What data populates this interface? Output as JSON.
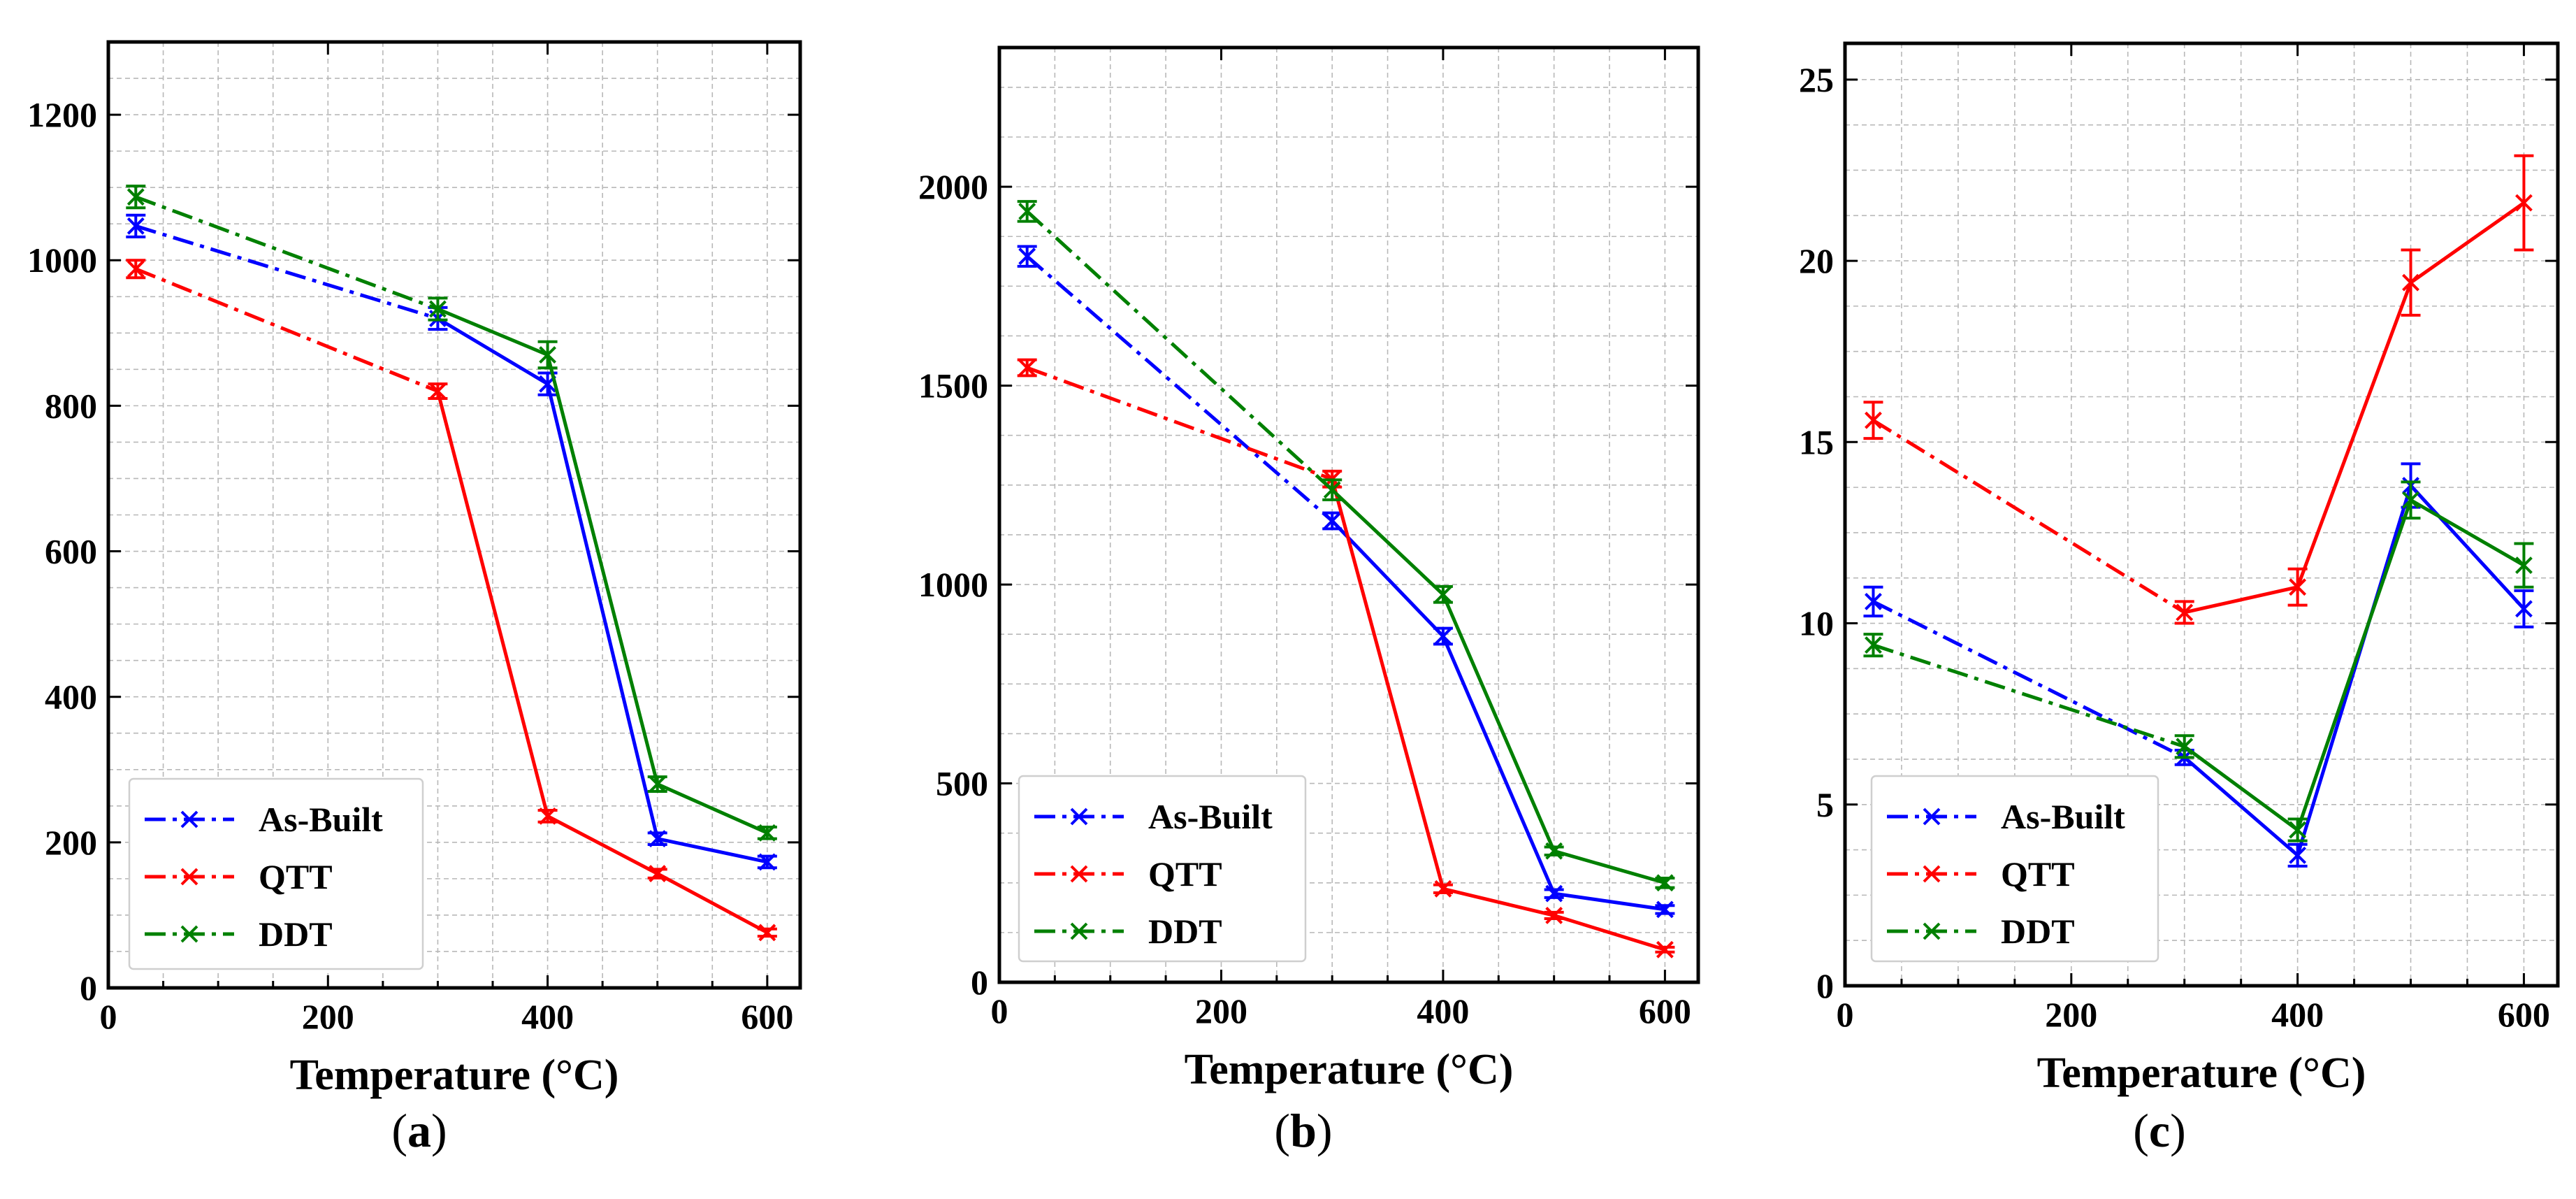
{
  "figure": {
    "colors": {
      "As-Built": "#0000ff",
      "QTT": "#ff0000",
      "DDT": "#008000"
    },
    "line_styles": {
      "dashdot_segment": "dash-dot",
      "solid_segment": "solid"
    }
  },
  "chart_data": [
    {
      "type": "line",
      "panel_label": "a",
      "title": "",
      "xlabel": "Temperature (°C)",
      "ylabel": "",
      "xlim": [
        0,
        630
      ],
      "ylim": [
        0,
        1300
      ],
      "xticks": [
        0,
        200,
        400,
        600
      ],
      "yticks": [
        0,
        200,
        400,
        600,
        800,
        1000,
        1200
      ],
      "grid": true,
      "legend_location": "lower-left",
      "dashdot_until_x": 300,
      "x": [
        25,
        300,
        400,
        500,
        600
      ],
      "series": [
        {
          "name": "As-Built",
          "values": [
            1047,
            920,
            830,
            205,
            173
          ],
          "errors": [
            15,
            15,
            15,
            8,
            8
          ]
        },
        {
          "name": "QTT",
          "values": [
            988,
            820,
            236,
            157,
            76
          ],
          "errors": [
            12,
            10,
            8,
            6,
            5
          ]
        },
        {
          "name": "DDT",
          "values": [
            1087,
            933,
            870,
            280,
            213
          ],
          "errors": [
            15,
            15,
            18,
            10,
            8
          ]
        }
      ]
    },
    {
      "type": "line",
      "panel_label": "b",
      "title": "",
      "xlabel": "Temperature (°C)",
      "ylabel": "",
      "xlim": [
        0,
        630
      ],
      "ylim": [
        0,
        2350
      ],
      "xticks": [
        0,
        200,
        400,
        600
      ],
      "yticks": [
        0,
        500,
        1000,
        1500,
        2000
      ],
      "grid": true,
      "legend_location": "lower-left",
      "dashdot_until_x": 300,
      "x": [
        25,
        300,
        400,
        500,
        600
      ],
      "series": [
        {
          "name": "As-Built",
          "values": [
            1825,
            1160,
            870,
            223,
            183
          ],
          "errors": [
            25,
            20,
            20,
            10,
            10
          ]
        },
        {
          "name": "QTT",
          "values": [
            1545,
            1265,
            235,
            168,
            82
          ],
          "errors": [
            20,
            20,
            10,
            8,
            6
          ]
        },
        {
          "name": "DDT",
          "values": [
            1938,
            1238,
            975,
            330,
            250
          ],
          "errors": [
            25,
            25,
            20,
            10,
            12
          ]
        }
      ]
    },
    {
      "type": "line",
      "panel_label": "c",
      "title": "",
      "xlabel": "Temperature (°C)",
      "ylabel": "",
      "xlim": [
        0,
        630
      ],
      "ylim": [
        0,
        26
      ],
      "xticks": [
        0,
        200,
        400,
        600
      ],
      "yticks": [
        0,
        5,
        10,
        15,
        20,
        25
      ],
      "grid": true,
      "legend_location": "lower-left",
      "dashdot_until_x": 300,
      "x": [
        25,
        300,
        400,
        500,
        600
      ],
      "series": [
        {
          "name": "As-Built",
          "values": [
            10.6,
            6.3,
            3.6,
            13.8,
            10.4
          ],
          "errors": [
            0.4,
            0.2,
            0.3,
            0.6,
            0.5
          ]
        },
        {
          "name": "QTT",
          "values": [
            15.6,
            10.3,
            11.0,
            19.4,
            21.6
          ],
          "errors": [
            0.5,
            0.3,
            0.5,
            0.9,
            1.3
          ]
        },
        {
          "name": "DDT",
          "values": [
            9.4,
            6.6,
            4.3,
            13.4,
            11.6
          ],
          "errors": [
            0.3,
            0.3,
            0.3,
            0.5,
            0.6
          ]
        }
      ]
    }
  ]
}
